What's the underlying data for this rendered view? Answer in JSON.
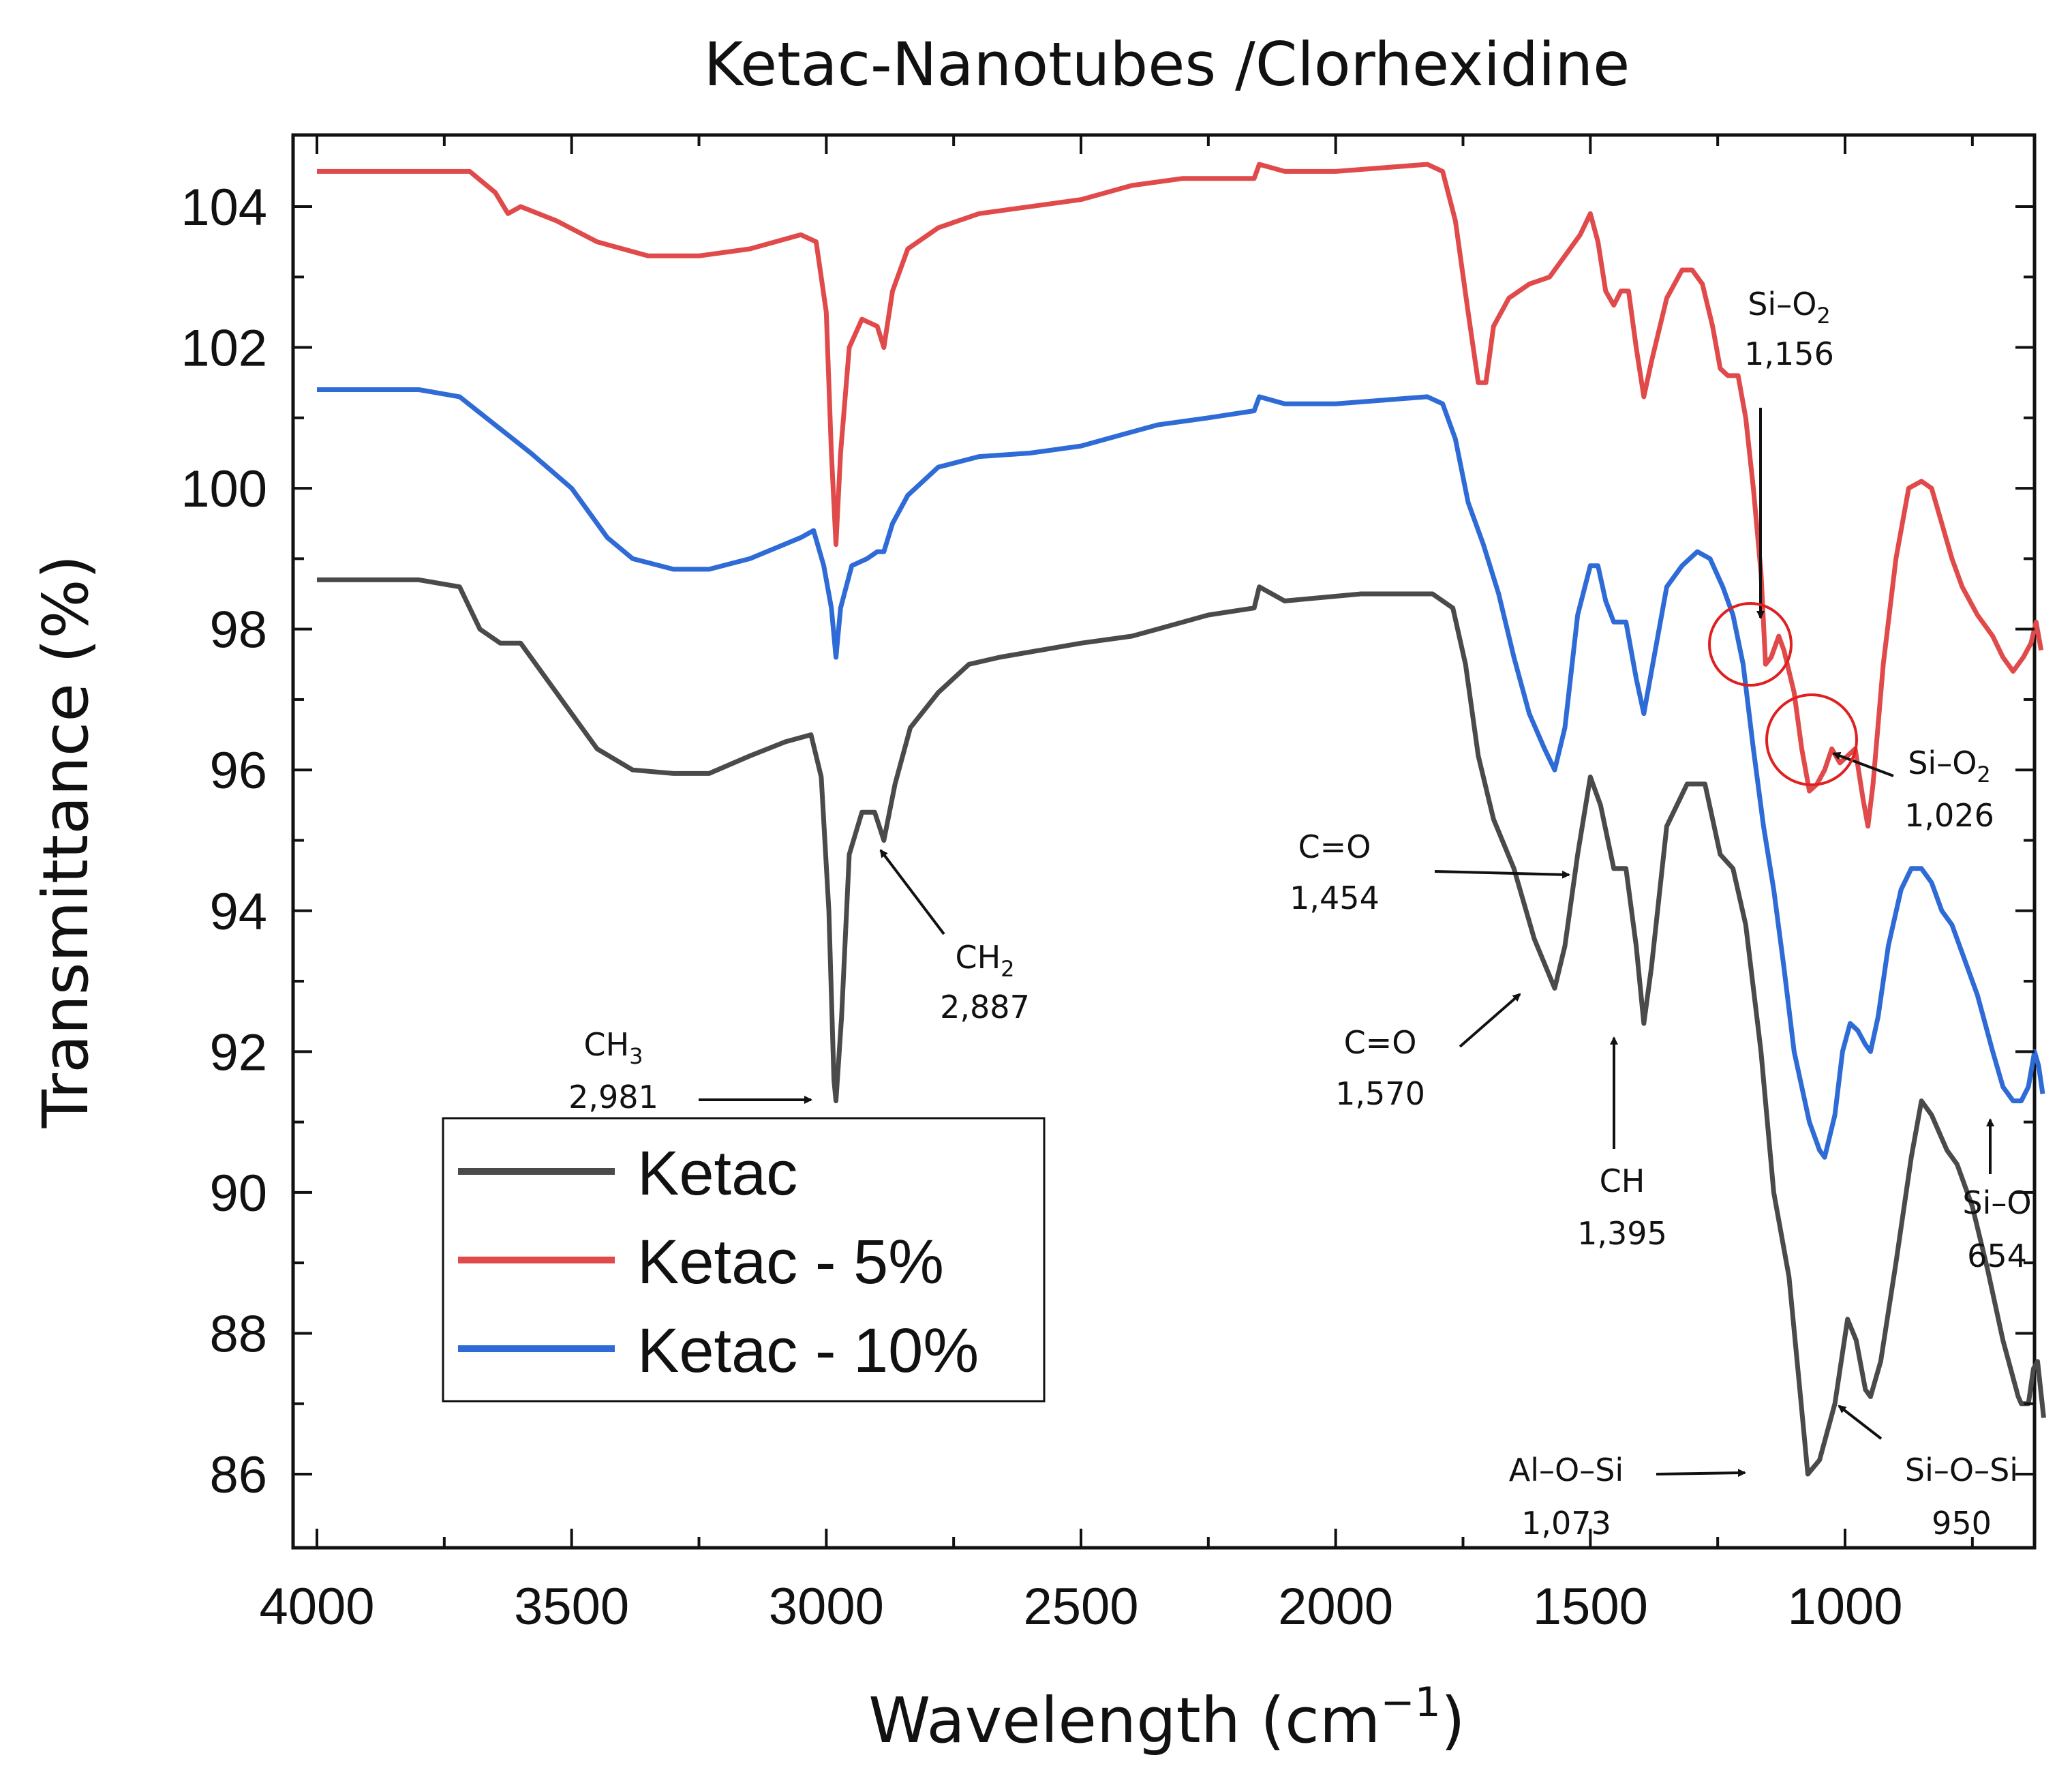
{
  "chart_data": {
    "type": "line",
    "title": "Ketac-Nanotubes /Clorhexidine",
    "xlabel": "Wavelength (cm",
    "xlabel_sup": "−1",
    "xlabel_end": ")",
    "ylabel": "Transmittance (%)",
    "xlim": [
      4000,
      600
    ],
    "ylim": [
      85,
      105
    ],
    "xticks": [
      4000,
      3500,
      3000,
      2500,
      2000,
      1500,
      1000
    ],
    "xtick_labels": [
      "4000",
      "3500",
      "3000",
      "2500",
      "2000",
      "1500",
      "1000"
    ],
    "yticks": [
      86,
      88,
      90,
      92,
      94,
      96,
      98,
      100,
      102,
      104
    ],
    "ytick_labels": [
      "86",
      "88",
      "90",
      "92",
      "94",
      "96",
      "98",
      "100",
      "102",
      "104"
    ],
    "legend": {
      "position": "lower-left",
      "entries": [
        "Ketac",
        "Ketac - 5%",
        "Ketac - 10%"
      ]
    },
    "series": [
      {
        "name": "Ketac",
        "color": "#4a4a4a",
        "points": [
          [
            4000,
            98.7
          ],
          [
            3800,
            98.7
          ],
          [
            3720,
            98.6
          ],
          [
            3680,
            98.0
          ],
          [
            3640,
            97.8
          ],
          [
            3600,
            97.8
          ],
          [
            3520,
            97.0
          ],
          [
            3450,
            96.3
          ],
          [
            3380,
            96.0
          ],
          [
            3300,
            95.95
          ],
          [
            3230,
            95.95
          ],
          [
            3150,
            96.2
          ],
          [
            3080,
            96.4
          ],
          [
            3030,
            96.5
          ],
          [
            3010,
            95.9
          ],
          [
            2995,
            94.0
          ],
          [
            2985,
            91.6
          ],
          [
            2981,
            91.3
          ],
          [
            2970,
            92.5
          ],
          [
            2955,
            94.8
          ],
          [
            2930,
            95.4
          ],
          [
            2905,
            95.4
          ],
          [
            2887,
            95.0
          ],
          [
            2865,
            95.8
          ],
          [
            2835,
            96.6
          ],
          [
            2780,
            97.1
          ],
          [
            2720,
            97.5
          ],
          [
            2660,
            97.6
          ],
          [
            2500,
            97.8
          ],
          [
            2400,
            97.9
          ],
          [
            2350,
            98.0
          ],
          [
            2250,
            98.2
          ],
          [
            2160,
            98.3
          ],
          [
            2150,
            98.6
          ],
          [
            2100,
            98.4
          ],
          [
            1950,
            98.5
          ],
          [
            1810,
            98.5
          ],
          [
            1770,
            98.3
          ],
          [
            1745,
            97.5
          ],
          [
            1720,
            96.2
          ],
          [
            1690,
            95.3
          ],
          [
            1650,
            94.6
          ],
          [
            1610,
            93.6
          ],
          [
            1570,
            92.9
          ],
          [
            1550,
            93.5
          ],
          [
            1525,
            94.8
          ],
          [
            1500,
            95.9
          ],
          [
            1480,
            95.5
          ],
          [
            1454,
            94.6
          ],
          [
            1430,
            94.6
          ],
          [
            1410,
            93.5
          ],
          [
            1395,
            92.4
          ],
          [
            1380,
            93.2
          ],
          [
            1350,
            95.2
          ],
          [
            1310,
            95.8
          ],
          [
            1275,
            95.8
          ],
          [
            1245,
            94.8
          ],
          [
            1220,
            94.6
          ],
          [
            1195,
            93.8
          ],
          [
            1165,
            92.0
          ],
          [
            1140,
            90.0
          ],
          [
            1110,
            88.8
          ],
          [
            1090,
            87.3
          ],
          [
            1073,
            86.0
          ],
          [
            1050,
            86.2
          ],
          [
            1020,
            87.0
          ],
          [
            995,
            88.2
          ],
          [
            978,
            87.9
          ],
          [
            960,
            87.2
          ],
          [
            950,
            87.1
          ],
          [
            930,
            87.6
          ],
          [
            900,
            89.0
          ],
          [
            870,
            90.5
          ],
          [
            850,
            91.3
          ],
          [
            830,
            91.1
          ],
          [
            800,
            90.6
          ],
          [
            780,
            90.4
          ],
          [
            750,
            89.8
          ],
          [
            720,
            88.9
          ],
          [
            690,
            87.9
          ],
          [
            660,
            87.1
          ],
          [
            654,
            87.0
          ],
          [
            640,
            87.0
          ],
          [
            630,
            87.5
          ],
          [
            622,
            87.6
          ],
          [
            610,
            86.8
          ]
        ]
      },
      {
        "name": "Ketac - 5%",
        "color": "#e04a4a",
        "points": [
          [
            4000,
            104.5
          ],
          [
            3800,
            104.5
          ],
          [
            3700,
            104.5
          ],
          [
            3650,
            104.2
          ],
          [
            3625,
            103.9
          ],
          [
            3600,
            104.0
          ],
          [
            3530,
            103.8
          ],
          [
            3450,
            103.5
          ],
          [
            3350,
            103.3
          ],
          [
            3250,
            103.3
          ],
          [
            3150,
            103.4
          ],
          [
            3050,
            103.6
          ],
          [
            3020,
            103.5
          ],
          [
            3000,
            102.5
          ],
          [
            2990,
            100.5
          ],
          [
            2981,
            99.2
          ],
          [
            2972,
            100.5
          ],
          [
            2955,
            102.0
          ],
          [
            2930,
            102.4
          ],
          [
            2900,
            102.3
          ],
          [
            2887,
            102.0
          ],
          [
            2870,
            102.8
          ],
          [
            2840,
            103.4
          ],
          [
            2780,
            103.7
          ],
          [
            2700,
            103.9
          ],
          [
            2500,
            104.1
          ],
          [
            2400,
            104.3
          ],
          [
            2300,
            104.4
          ],
          [
            2160,
            104.4
          ],
          [
            2150,
            104.6
          ],
          [
            2100,
            104.5
          ],
          [
            2000,
            104.5
          ],
          [
            1820,
            104.6
          ],
          [
            1790,
            104.5
          ],
          [
            1765,
            103.8
          ],
          [
            1740,
            102.5
          ],
          [
            1720,
            101.5
          ],
          [
            1705,
            101.5
          ],
          [
            1690,
            102.3
          ],
          [
            1660,
            102.7
          ],
          [
            1620,
            102.9
          ],
          [
            1580,
            103.0
          ],
          [
            1550,
            103.3
          ],
          [
            1520,
            103.6
          ],
          [
            1500,
            103.9
          ],
          [
            1485,
            103.5
          ],
          [
            1470,
            102.8
          ],
          [
            1454,
            102.6
          ],
          [
            1440,
            102.8
          ],
          [
            1425,
            102.8
          ],
          [
            1410,
            102.0
          ],
          [
            1395,
            101.3
          ],
          [
            1380,
            101.8
          ],
          [
            1350,
            102.7
          ],
          [
            1320,
            103.1
          ],
          [
            1300,
            103.1
          ],
          [
            1280,
            102.9
          ],
          [
            1260,
            102.3
          ],
          [
            1245,
            101.7
          ],
          [
            1230,
            101.6
          ],
          [
            1210,
            101.6
          ],
          [
            1195,
            101.0
          ],
          [
            1180,
            100.0
          ],
          [
            1165,
            98.8
          ],
          [
            1156,
            97.5
          ],
          [
            1145,
            97.6
          ],
          [
            1130,
            97.9
          ],
          [
            1120,
            97.7
          ],
          [
            1100,
            97.1
          ],
          [
            1085,
            96.3
          ],
          [
            1070,
            95.7
          ],
          [
            1055,
            95.8
          ],
          [
            1040,
            96.0
          ],
          [
            1026,
            96.3
          ],
          [
            1010,
            96.1
          ],
          [
            995,
            96.2
          ],
          [
            980,
            96.3
          ],
          [
            965,
            95.6
          ],
          [
            955,
            95.2
          ],
          [
            945,
            95.8
          ],
          [
            925,
            97.5
          ],
          [
            900,
            99.0
          ],
          [
            875,
            100.0
          ],
          [
            850,
            100.1
          ],
          [
            830,
            100.0
          ],
          [
            810,
            99.5
          ],
          [
            790,
            99.0
          ],
          [
            770,
            98.6
          ],
          [
            740,
            98.2
          ],
          [
            710,
            97.9
          ],
          [
            690,
            97.6
          ],
          [
            670,
            97.4
          ],
          [
            650,
            97.6
          ],
          [
            635,
            97.8
          ],
          [
            625,
            98.1
          ],
          [
            615,
            97.7
          ]
        ]
      },
      {
        "name": "Ketac - 10%",
        "color": "#2f6bd6",
        "points": [
          [
            4000,
            101.4
          ],
          [
            3800,
            101.4
          ],
          [
            3720,
            101.3
          ],
          [
            3650,
            100.9
          ],
          [
            3580,
            100.5
          ],
          [
            3500,
            100.0
          ],
          [
            3430,
            99.3
          ],
          [
            3380,
            99.0
          ],
          [
            3300,
            98.85
          ],
          [
            3230,
            98.85
          ],
          [
            3150,
            99.0
          ],
          [
            3050,
            99.3
          ],
          [
            3025,
            99.4
          ],
          [
            3005,
            98.9
          ],
          [
            2990,
            98.3
          ],
          [
            2981,
            97.6
          ],
          [
            2972,
            98.3
          ],
          [
            2950,
            98.9
          ],
          [
            2920,
            99.0
          ],
          [
            2900,
            99.1
          ],
          [
            2887,
            99.1
          ],
          [
            2870,
            99.5
          ],
          [
            2840,
            99.9
          ],
          [
            2780,
            100.3
          ],
          [
            2700,
            100.45
          ],
          [
            2600,
            100.5
          ],
          [
            2500,
            100.6
          ],
          [
            2400,
            100.8
          ],
          [
            2350,
            100.9
          ],
          [
            2250,
            101.0
          ],
          [
            2160,
            101.1
          ],
          [
            2150,
            101.3
          ],
          [
            2100,
            101.2
          ],
          [
            2000,
            101.2
          ],
          [
            1820,
            101.3
          ],
          [
            1790,
            101.2
          ],
          [
            1765,
            100.7
          ],
          [
            1740,
            99.8
          ],
          [
            1710,
            99.2
          ],
          [
            1680,
            98.5
          ],
          [
            1650,
            97.6
          ],
          [
            1620,
            96.8
          ],
          [
            1590,
            96.3
          ],
          [
            1570,
            96.0
          ],
          [
            1550,
            96.6
          ],
          [
            1525,
            98.2
          ],
          [
            1500,
            98.9
          ],
          [
            1485,
            98.9
          ],
          [
            1470,
            98.4
          ],
          [
            1454,
            98.1
          ],
          [
            1430,
            98.1
          ],
          [
            1410,
            97.3
          ],
          [
            1395,
            96.8
          ],
          [
            1380,
            97.4
          ],
          [
            1350,
            98.6
          ],
          [
            1320,
            98.9
          ],
          [
            1290,
            99.1
          ],
          [
            1265,
            99.0
          ],
          [
            1240,
            98.6
          ],
          [
            1220,
            98.2
          ],
          [
            1200,
            97.5
          ],
          [
            1180,
            96.3
          ],
          [
            1160,
            95.2
          ],
          [
            1140,
            94.3
          ],
          [
            1120,
            93.2
          ],
          [
            1100,
            92.0
          ],
          [
            1070,
            91.0
          ],
          [
            1050,
            90.6
          ],
          [
            1040,
            90.5
          ],
          [
            1020,
            91.1
          ],
          [
            1005,
            92.0
          ],
          [
            990,
            92.4
          ],
          [
            975,
            92.3
          ],
          [
            960,
            92.1
          ],
          [
            950,
            92.0
          ],
          [
            935,
            92.5
          ],
          [
            915,
            93.5
          ],
          [
            890,
            94.3
          ],
          [
            870,
            94.6
          ],
          [
            850,
            94.6
          ],
          [
            830,
            94.4
          ],
          [
            810,
            94.0
          ],
          [
            790,
            93.8
          ],
          [
            770,
            93.4
          ],
          [
            740,
            92.8
          ],
          [
            710,
            92.0
          ],
          [
            690,
            91.5
          ],
          [
            670,
            91.3
          ],
          [
            654,
            91.3
          ],
          [
            640,
            91.5
          ],
          [
            628,
            92.0
          ],
          [
            620,
            91.8
          ],
          [
            612,
            91.4
          ]
        ]
      }
    ],
    "annotations": [
      {
        "id": "ch3",
        "label": "CH",
        "sub": "3",
        "value": "2,981"
      },
      {
        "id": "ch2",
        "label": "CH",
        "sub": "2",
        "value": "2,887"
      },
      {
        "id": "co1454",
        "label": "C=O",
        "sub": "",
        "value": "1,454"
      },
      {
        "id": "co1570",
        "label": "C=O",
        "sub": "",
        "value": "1,570"
      },
      {
        "id": "ch1395",
        "label": "CH",
        "sub": "",
        "value": "1,395"
      },
      {
        "id": "alosi",
        "label": "Al–O–Si",
        "sub": "",
        "value": "1,073"
      },
      {
        "id": "siosi",
        "label": "Si–O–Si",
        "sub": "",
        "value": "950"
      },
      {
        "id": "sio654",
        "label": "Si–O",
        "sub": "",
        "value": "654"
      },
      {
        "id": "sio2_1156",
        "label": "Si–O",
        "sub": "2",
        "value": "1,156"
      },
      {
        "id": "sio2_1026",
        "label": "Si–O",
        "sub": "2",
        "value": "1,026"
      }
    ]
  }
}
